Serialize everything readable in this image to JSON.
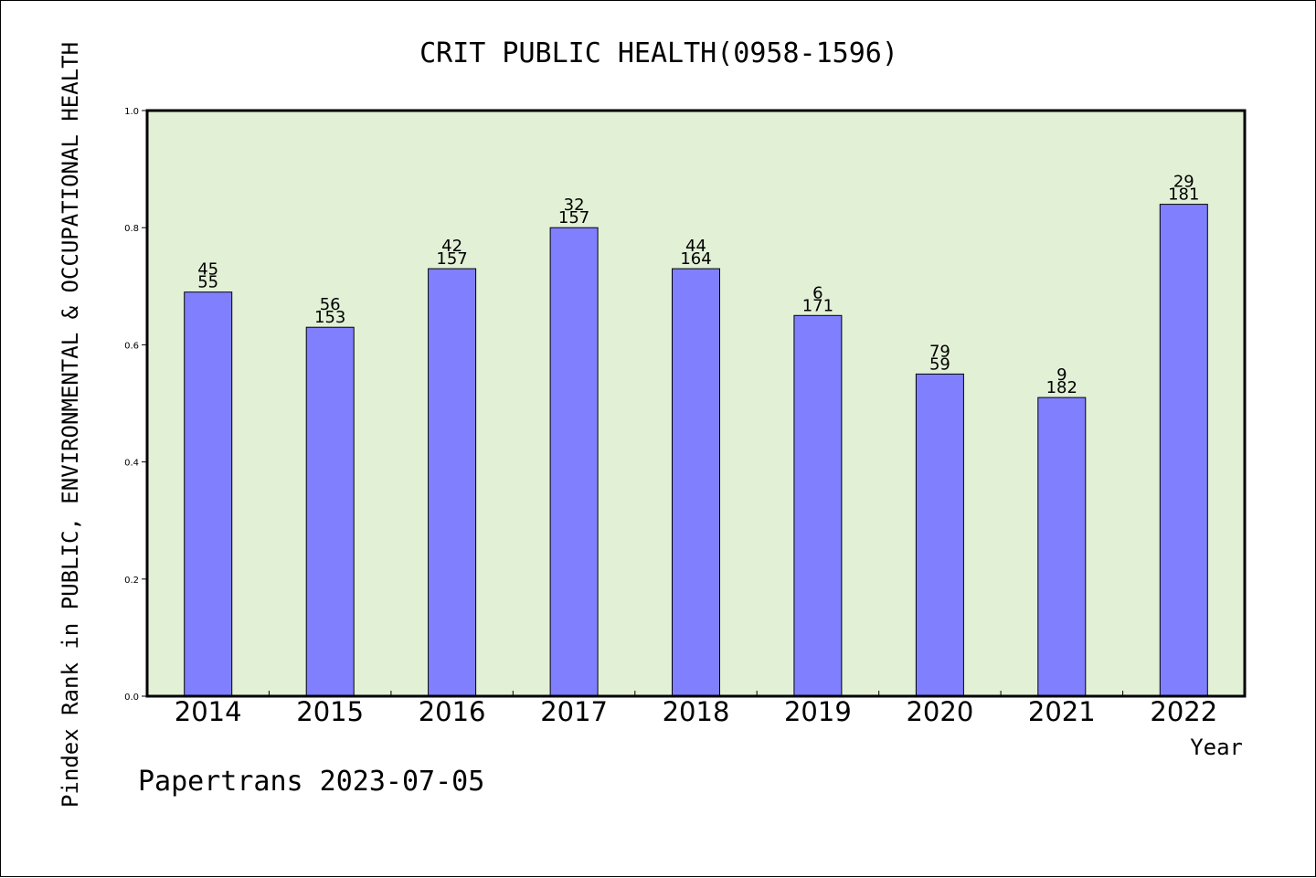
{
  "chart_data": {
    "type": "bar",
    "title": "CRIT PUBLIC HEALTH(0958-1596)",
    "xlabel": "Year",
    "ylabel": "Pindex Rank in PUBLIC, ENVIRONMENTAL & OCCUPATIONAL HEALTH",
    "categories": [
      "2014",
      "2015",
      "2016",
      "2017",
      "2018",
      "2019",
      "2020",
      "2021",
      "2022"
    ],
    "values": [
      0.69,
      0.63,
      0.73,
      0.8,
      0.73,
      0.65,
      0.55,
      0.51,
      0.84
    ],
    "rank_labels": [
      "45",
      "56",
      "42",
      "32",
      "44",
      "6",
      "79",
      "9",
      "29"
    ],
    "total_labels": [
      "55",
      "153",
      "157",
      "157",
      "164",
      "171",
      "59",
      "182",
      "181"
    ],
    "ylim": [
      0,
      1.0
    ],
    "yticks": [
      "0.0",
      "0.2",
      "0.4",
      "0.6",
      "0.8",
      "1.0"
    ],
    "ytick_values": [
      0,
      0.2,
      0.4,
      0.6,
      0.8,
      1.0
    ],
    "grid": false,
    "legend": "none",
    "colors": {
      "bar": "#8080ff",
      "plot_background": "#e2f0d6",
      "axis": "#000000"
    }
  },
  "footer": {
    "text": "Papertrans 2023-07-05"
  }
}
